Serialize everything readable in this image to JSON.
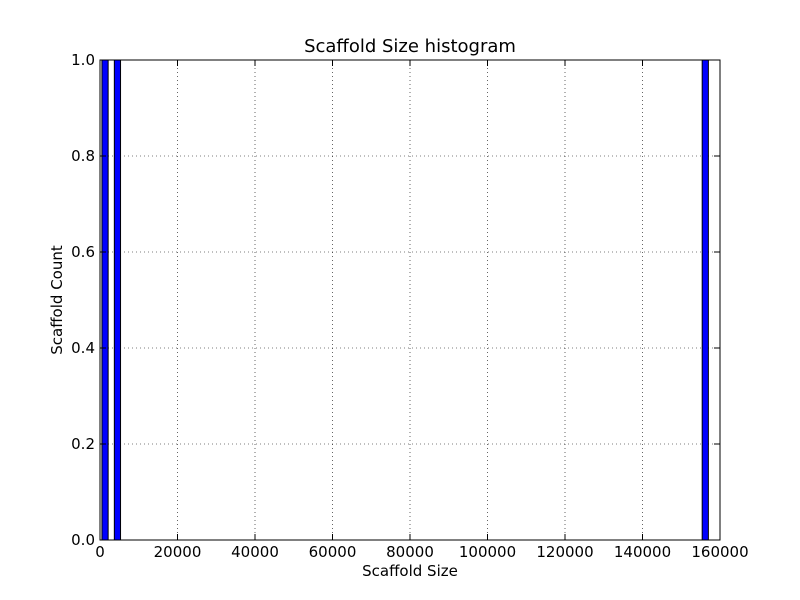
{
  "chart_data": {
    "type": "bar",
    "title": "Scaffold Size histogram",
    "xlabel": "Scaffold Size",
    "ylabel": "Scaffold Count",
    "xlim": [
      0,
      160000
    ],
    "ylim": [
      0,
      1.0
    ],
    "grid": true,
    "bar_color": "#0000ff",
    "bins": [
      {
        "x_start": 500,
        "x_end": 2100,
        "count": 1
      },
      {
        "x_start": 3700,
        "x_end": 5300,
        "count": 1
      },
      {
        "x_start": 155400,
        "x_end": 157000,
        "count": 1
      }
    ],
    "x_ticks": [
      0,
      20000,
      40000,
      60000,
      80000,
      100000,
      120000,
      140000,
      160000
    ],
    "x_tick_labels": [
      "0",
      "20000",
      "40000",
      "60000",
      "80000",
      "100000",
      "120000",
      "140000",
      "160000"
    ],
    "y_ticks": [
      0,
      0.2,
      0.4,
      0.6,
      0.8,
      1.0
    ],
    "y_tick_labels": [
      "0.0",
      "0.2",
      "0.4",
      "0.6",
      "0.8",
      "1.0"
    ]
  }
}
